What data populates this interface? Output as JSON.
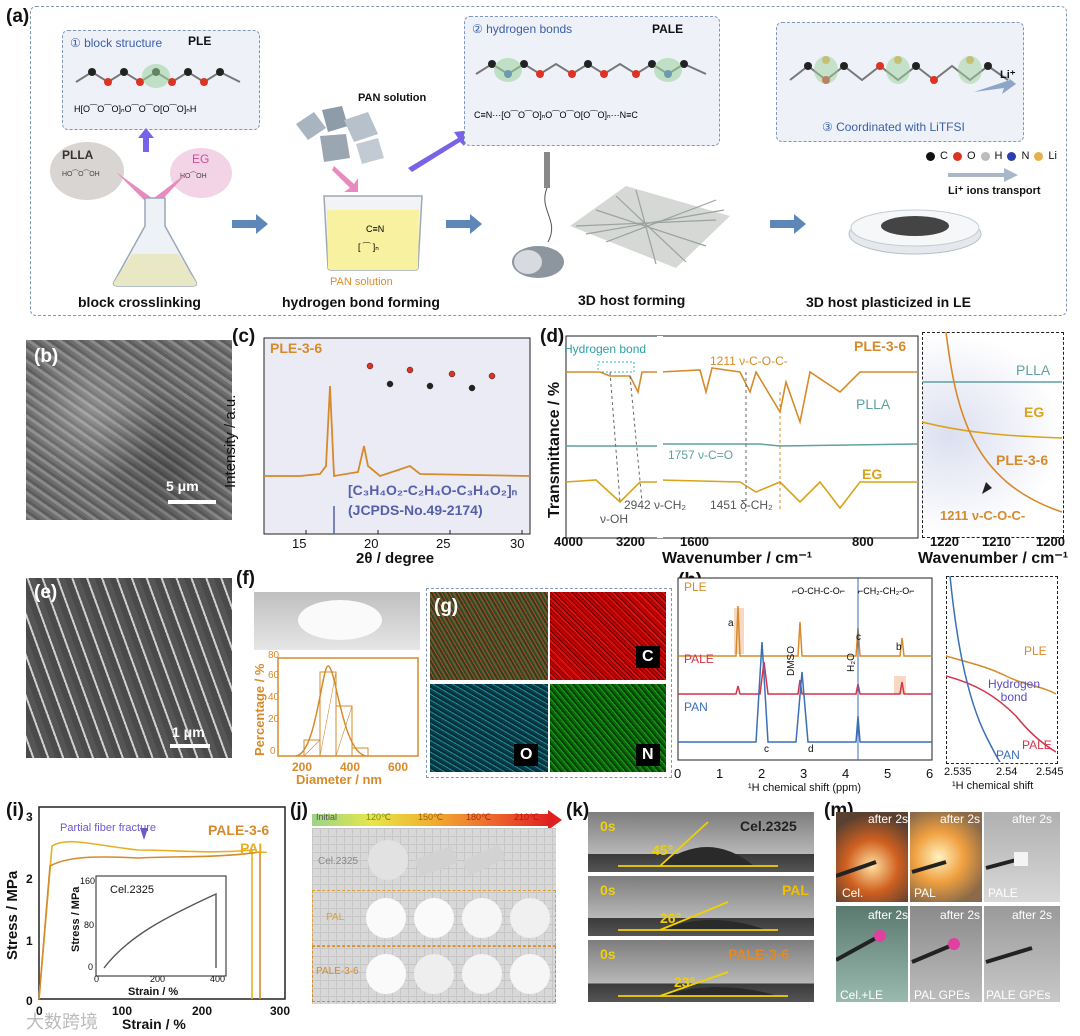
{
  "panel_a": {
    "label": "(a)",
    "block_structure": "① block structure",
    "ple": "PLE",
    "hydrogen_bonds": "② hydrogen bonds",
    "pale": "PALE",
    "coordinated": "③ Coordinated with LiTFSI",
    "li_plus": "Li⁺",
    "plla": "PLLA",
    "eg": "EG",
    "pan_solution": "PAN solution",
    "pan_solution_top": "PAN solution",
    "legend_c": "C",
    "legend_o": "O",
    "legend_h": "H",
    "legend_n": "N",
    "legend_li": "Li",
    "li_transport": "Li⁺ ions transport",
    "step1": "block crosslinking",
    "step2": "hydrogen bond forming",
    "step3": "3D host forming",
    "step4": "3D host  plasticized in LE"
  },
  "panel_b": {
    "label": "(b)",
    "scale": "5 μm"
  },
  "panel_c": {
    "label": "(c)",
    "sample": "PLE-3-6",
    "ylabel": "Intensity / a.u.",
    "xlabel": "2θ / degree",
    "formula": "[C₃H₄O₂-C₂H₄O-C₃H₄O₂]ₙ",
    "jcpds": "(JCPDS-No.49-2174)",
    "ticks": [
      "15",
      "20",
      "25",
      "30"
    ]
  },
  "panel_d": {
    "label": "(d)",
    "hbond": "Hydrogen bond",
    "ylabel": "Transmittance / %",
    "xlabel": "Wavenumber / cm⁻¹",
    "xlabel2": "Wavenumber / cm⁻¹",
    "ple36": "PLE-3-6",
    "plla": "PLLA",
    "eg": "EG",
    "a1211": "1211 ν-C-O-C-",
    "a1757": "1757 ν-C=O",
    "a2942": "2942 ν-CH₂",
    "a1451": "1451 δ-CH₂",
    "aoh": "ν-OH",
    "ticks": [
      "4000",
      "3200",
      "1600",
      "800"
    ],
    "ticks2": [
      "1220",
      "1210",
      "1200"
    ],
    "inset_plla": "PLLA",
    "inset_eg": "EG",
    "inset_ple": "PLE-3-6",
    "inset_1211": "1211 ν-C-O-C-"
  },
  "panel_e": {
    "label": "(e)",
    "scale": "1 μm"
  },
  "panel_f": {
    "label": "(f)",
    "ylabel": "Percentage / %",
    "xlabel": "Diameter / nm",
    "xticks": [
      "200",
      "400",
      "600"
    ],
    "yticks": [
      "0",
      "20",
      "40",
      "60",
      "80"
    ]
  },
  "panel_g": {
    "label": "(g)",
    "c": "C",
    "o": "O",
    "n": "N"
  },
  "panel_h": {
    "label": "(h)",
    "ple": "PLE",
    "pale": "PALE",
    "pan": "PAN",
    "dmso": "DMSO",
    "h2o": "H₂O",
    "xlabel": "¹H chemical shift (ppm)",
    "xlabel2": "¹H chemical shift",
    "ticks": [
      "0",
      "1",
      "2",
      "3",
      "4",
      "5",
      "6"
    ],
    "ticks2": [
      "2.535",
      "2.54",
      "2.545"
    ],
    "inset_ple": "PLE",
    "hbond": "Hydrogen bond",
    "inset_pale": "PALE",
    "inset_pan": "PAN",
    "peak_a": "a",
    "peak_b": "b",
    "peak_c": "c",
    "peak_c2": "c",
    "peak_d": "d"
  },
  "panel_i": {
    "label": "(i)",
    "ylabel": "Stress / MPa",
    "xlabel": "Strain / %",
    "pale": "PALE-3-6",
    "pal": "PAL",
    "fracture": "Partial fiber fracture",
    "inset_label": "Cel.2325",
    "inset_ylabel": "Stress / MPa",
    "inset_xlabel": "Strain / %",
    "xticks": [
      "0",
      "100",
      "200",
      "300"
    ],
    "yticks": [
      "0",
      "1",
      "2",
      "3"
    ],
    "inset_xticks": [
      "0",
      "200",
      "400"
    ],
    "inset_yticks": [
      "0",
      "80",
      "160"
    ]
  },
  "panel_j": {
    "label": "(j)",
    "temps": [
      "Initial",
      "120℃",
      "150℃",
      "180℃",
      "210℃"
    ],
    "row1": "Cel.2325",
    "row2": "PAL",
    "row3": "PALE-3-6"
  },
  "panel_k": {
    "label": "(k)",
    "rows": [
      {
        "time": "0s",
        "name": "Cel.2325",
        "angle": "45°"
      },
      {
        "time": "0s",
        "name": "PAL",
        "angle": "26°"
      },
      {
        "time": "0s",
        "name": "PALE-3-6",
        "angle": "23°"
      }
    ]
  },
  "panel_m": {
    "label": "(m)",
    "cells": [
      {
        "time": "after 2s",
        "name": "Cel."
      },
      {
        "time": "after 2s",
        "name": "PAL"
      },
      {
        "time": "after 2s",
        "name": "PALE"
      },
      {
        "time": "after 2s",
        "name": "Cel.+LE"
      },
      {
        "time": "after 2s",
        "name": "PAL GPEs"
      },
      {
        "time": "after 2s",
        "name": "PALE GPEs"
      }
    ]
  },
  "watermark": "大数跨境"
}
